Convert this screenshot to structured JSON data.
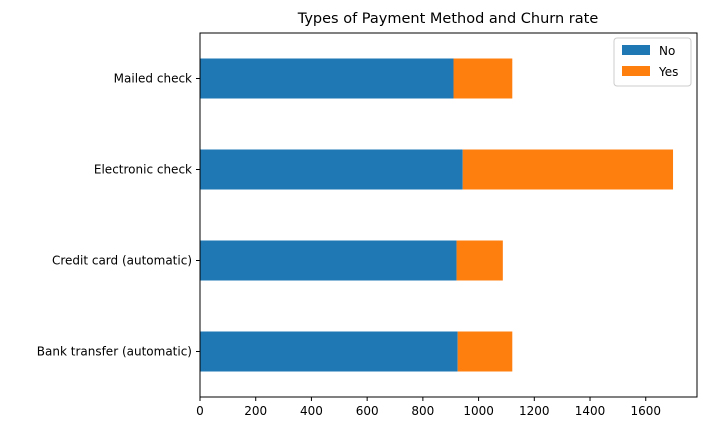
{
  "chart_data": {
    "type": "bar",
    "orientation": "horizontal",
    "stacked": true,
    "title": "Types of Payment Method and Churn rate",
    "xlabel": "",
    "ylabel": "",
    "categories": [
      "Bank transfer (automatic)",
      "Credit card (automatic)",
      "Electronic check",
      "Mailed check"
    ],
    "series": [
      {
        "name": "No",
        "values": [
          925,
          921,
          943,
          910
        ],
        "color": "#1f77b4"
      },
      {
        "name": "Yes",
        "values": [
          196,
          166,
          755,
          211
        ],
        "color": "#ff7f0e"
      }
    ],
    "xlim": [
      0,
      1784
    ],
    "xticks": [
      0,
      200,
      400,
      600,
      800,
      1000,
      1200,
      1400,
      1600
    ],
    "grid": false,
    "legend_position": "top-right"
  }
}
